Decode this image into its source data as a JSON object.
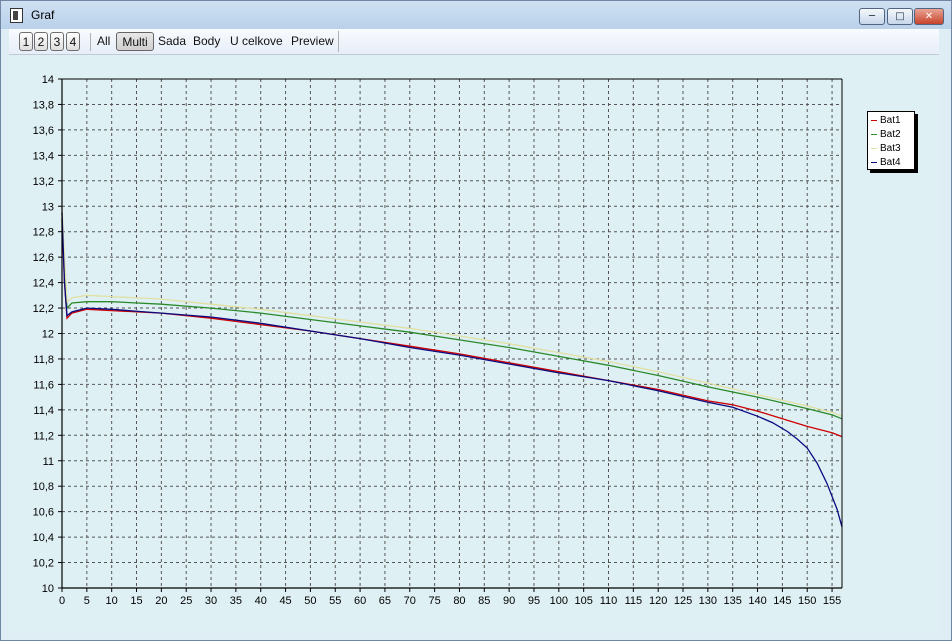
{
  "window": {
    "title": "Graf"
  },
  "toolbar": {
    "pages": [
      "1",
      "2",
      "3",
      "4"
    ],
    "items": [
      "All",
      "Multi",
      "Sada",
      "Body",
      "U celkove",
      "Preview"
    ],
    "active": "Multi"
  },
  "chart_data": {
    "type": "line",
    "title": "",
    "xlabel": "",
    "ylabel": "",
    "xlim": [
      0,
      157
    ],
    "ylim": [
      10,
      14
    ],
    "grid": true,
    "legend_position": "top-right",
    "x_ticks": [
      0,
      5,
      10,
      15,
      20,
      25,
      30,
      35,
      40,
      45,
      50,
      55,
      60,
      65,
      70,
      75,
      80,
      85,
      90,
      95,
      100,
      105,
      110,
      115,
      120,
      125,
      130,
      135,
      140,
      145,
      150,
      155
    ],
    "y_ticks": [
      10,
      10.2,
      10.4,
      10.6,
      10.8,
      11,
      11.2,
      11.4,
      11.6,
      11.8,
      12,
      12.2,
      12.4,
      12.6,
      12.8,
      13,
      13.2,
      13.4,
      13.6,
      13.8,
      14
    ],
    "y_tick_labels": [
      "10",
      "10,2",
      "10,4",
      "10,6",
      "10,8",
      "11",
      "11,2",
      "11,4",
      "11,6",
      "11,8",
      "12",
      "12,2",
      "12,4",
      "12,6",
      "12,8",
      "13",
      "13,2",
      "13,4",
      "13,6",
      "13,8",
      "14"
    ],
    "series": [
      {
        "name": "Bat1",
        "color": "#cc0000",
        "x": [
          0,
          0.5,
          1,
          2,
          5,
          10,
          20,
          30,
          40,
          50,
          60,
          70,
          80,
          90,
          100,
          110,
          120,
          130,
          135,
          140,
          145,
          150,
          155,
          157
        ],
        "y": [
          12.9,
          12.4,
          12.12,
          12.16,
          12.19,
          12.18,
          12.16,
          12.12,
          12.07,
          12.02,
          11.96,
          11.9,
          11.84,
          11.77,
          11.7,
          11.63,
          11.56,
          11.47,
          11.44,
          11.39,
          11.33,
          11.27,
          11.22,
          11.19
        ]
      },
      {
        "name": "Bat2",
        "color": "#2a8a2a",
        "x": [
          0,
          0.5,
          1,
          2,
          5,
          10,
          20,
          30,
          40,
          50,
          60,
          70,
          80,
          90,
          100,
          110,
          120,
          130,
          140,
          150,
          155,
          157
        ],
        "y": [
          12.95,
          12.5,
          12.2,
          12.24,
          12.25,
          12.25,
          12.23,
          12.2,
          12.16,
          12.11,
          12.06,
          12.01,
          11.95,
          11.89,
          11.82,
          11.75,
          11.67,
          11.58,
          11.5,
          11.41,
          11.36,
          11.33
        ]
      },
      {
        "name": "Bat3",
        "color": "#e0e0a0",
        "x": [
          0,
          0.5,
          1,
          2,
          5,
          10,
          20,
          30,
          40,
          50,
          60,
          70,
          80,
          90,
          100,
          110,
          120,
          130,
          140,
          150,
          155,
          157
        ],
        "y": [
          13.0,
          12.6,
          12.25,
          12.28,
          12.3,
          12.29,
          12.27,
          12.23,
          12.19,
          12.14,
          12.09,
          12.04,
          11.98,
          11.92,
          11.85,
          11.78,
          11.7,
          11.61,
          11.52,
          11.43,
          11.38,
          11.35
        ]
      },
      {
        "name": "Bat4",
        "color": "#0a0a80",
        "x": [
          0,
          0.5,
          1,
          2,
          5,
          10,
          20,
          30,
          40,
          50,
          60,
          70,
          80,
          90,
          100,
          110,
          120,
          130,
          135,
          140,
          143,
          146,
          148,
          150,
          152,
          154,
          156,
          157
        ],
        "y": [
          12.95,
          12.4,
          12.14,
          12.17,
          12.2,
          12.19,
          12.16,
          12.13,
          12.08,
          12.02,
          11.96,
          11.89,
          11.83,
          11.76,
          11.69,
          11.63,
          11.55,
          11.46,
          11.42,
          11.35,
          11.3,
          11.23,
          11.17,
          11.1,
          10.98,
          10.82,
          10.62,
          10.48
        ]
      }
    ]
  }
}
